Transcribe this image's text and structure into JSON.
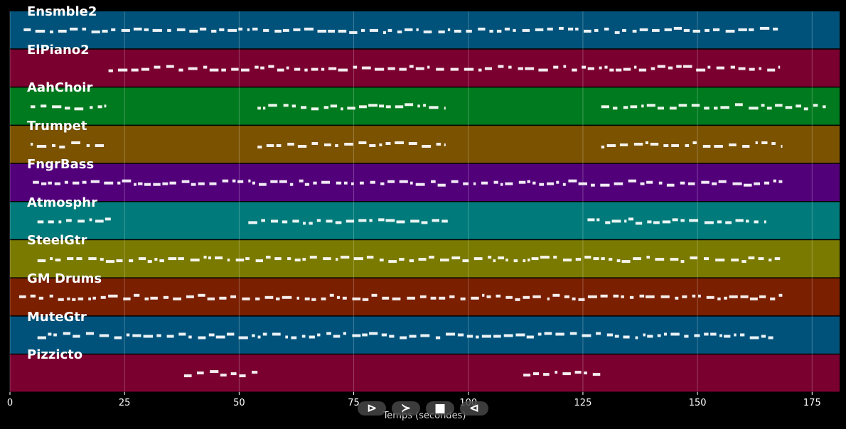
{
  "chart_data": {
    "type": "piano-roll",
    "xlabel": "Temps (secondes)",
    "xlim": [
      0,
      181
    ],
    "x_ticks": [
      0,
      25,
      50,
      75,
      100,
      125,
      150,
      175
    ],
    "x_tick_labels": [
      "0",
      "25",
      "50",
      "75",
      "100",
      "125",
      "150",
      "175"
    ],
    "grid": true,
    "tracks": [
      {
        "name": "Ensmble2",
        "color": "#00527a",
        "segments": [
          [
            3,
            168.5
          ]
        ]
      },
      {
        "name": "ElPiano2",
        "color": "#7a0030",
        "segments": [
          [
            21.5,
            168
          ]
        ]
      },
      {
        "name": "AahChoir",
        "color": "#007a1e",
        "segments": [
          [
            4.5,
            21
          ],
          [
            54,
            95
          ],
          [
            129,
            178
          ]
        ]
      },
      {
        "name": "Trumpet",
        "color": "#7a5200",
        "segments": [
          [
            4.5,
            21
          ],
          [
            54,
            95
          ],
          [
            129,
            168.5
          ]
        ]
      },
      {
        "name": "FngrBass",
        "color": "#52007a",
        "segments": [
          [
            5,
            168.5
          ]
        ]
      },
      {
        "name": "Atmosphr",
        "color": "#007a7a",
        "segments": [
          [
            6,
            22
          ],
          [
            52,
            95.5
          ],
          [
            126,
            165
          ]
        ]
      },
      {
        "name": "SteelGtr",
        "color": "#7a7a00",
        "segments": [
          [
            6,
            168
          ]
        ]
      },
      {
        "name": "GM Drums",
        "color": "#7a1f00",
        "segments": [
          [
            2,
            168.5
          ]
        ]
      },
      {
        "name": "MuteGtr",
        "color": "#00527a",
        "segments": [
          [
            6,
            166.5
          ]
        ]
      },
      {
        "name": "Pizzicto",
        "color": "#7a0030",
        "segments": [
          [
            38,
            54
          ],
          [
            112,
            129
          ]
        ]
      }
    ]
  },
  "controls": [
    {
      "name": "play-button",
      "glyph": "⊳"
    },
    {
      "name": "forward-button",
      "glyph": "≻"
    },
    {
      "name": "stop-button",
      "glyph": "■"
    },
    {
      "name": "rewind-button",
      "glyph": "⊲"
    }
  ]
}
